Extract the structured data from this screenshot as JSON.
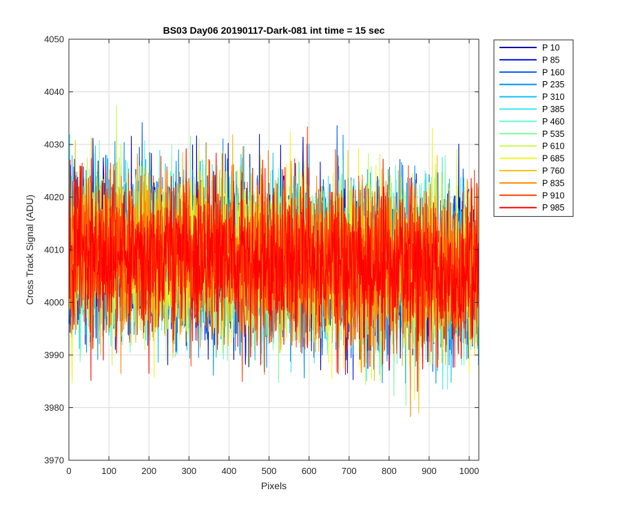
{
  "chart_data": {
    "type": "line",
    "title": "BS03 Day06 20190117-Dark-081 int time = 15 sec",
    "xlabel": "Pixels",
    "ylabel": "Cross Track Signal (ADU)",
    "xlim": [
      0,
      1024
    ],
    "ylim": [
      3970,
      4050
    ],
    "xticks": [
      0,
      100,
      200,
      300,
      400,
      500,
      600,
      700,
      800,
      900,
      1000
    ],
    "yticks": [
      3970,
      3980,
      3990,
      4000,
      4010,
      4020,
      4030,
      4040,
      4050
    ],
    "grid": true,
    "legend_position": "outside-top-right",
    "n_points": 1024,
    "noise": {
      "mean": 4008,
      "std": 7.5,
      "shape": "slight downward trend toward higher pixels, approx 4010 at left to 4006 at right"
    },
    "series": [
      {
        "name": "P 10",
        "color": "#0000AA"
      },
      {
        "name": "P 85",
        "color": "#0010DD"
      },
      {
        "name": "P 160",
        "color": "#0055F0"
      },
      {
        "name": "P 235",
        "color": "#0090F5"
      },
      {
        "name": "P 310",
        "color": "#10C0F5"
      },
      {
        "name": "P 385",
        "color": "#30E8F0"
      },
      {
        "name": "P 460",
        "color": "#60F8D0"
      },
      {
        "name": "P 535",
        "color": "#80F8A0"
      },
      {
        "name": "P 610",
        "color": "#C8F850"
      },
      {
        "name": "P 685",
        "color": "#F5F520"
      },
      {
        "name": "P 760",
        "color": "#F5C010"
      },
      {
        "name": "P 835",
        "color": "#FF8C00"
      },
      {
        "name": "P 910",
        "color": "#FF4000"
      },
      {
        "name": "P 985",
        "color": "#FF0000"
      }
    ]
  }
}
